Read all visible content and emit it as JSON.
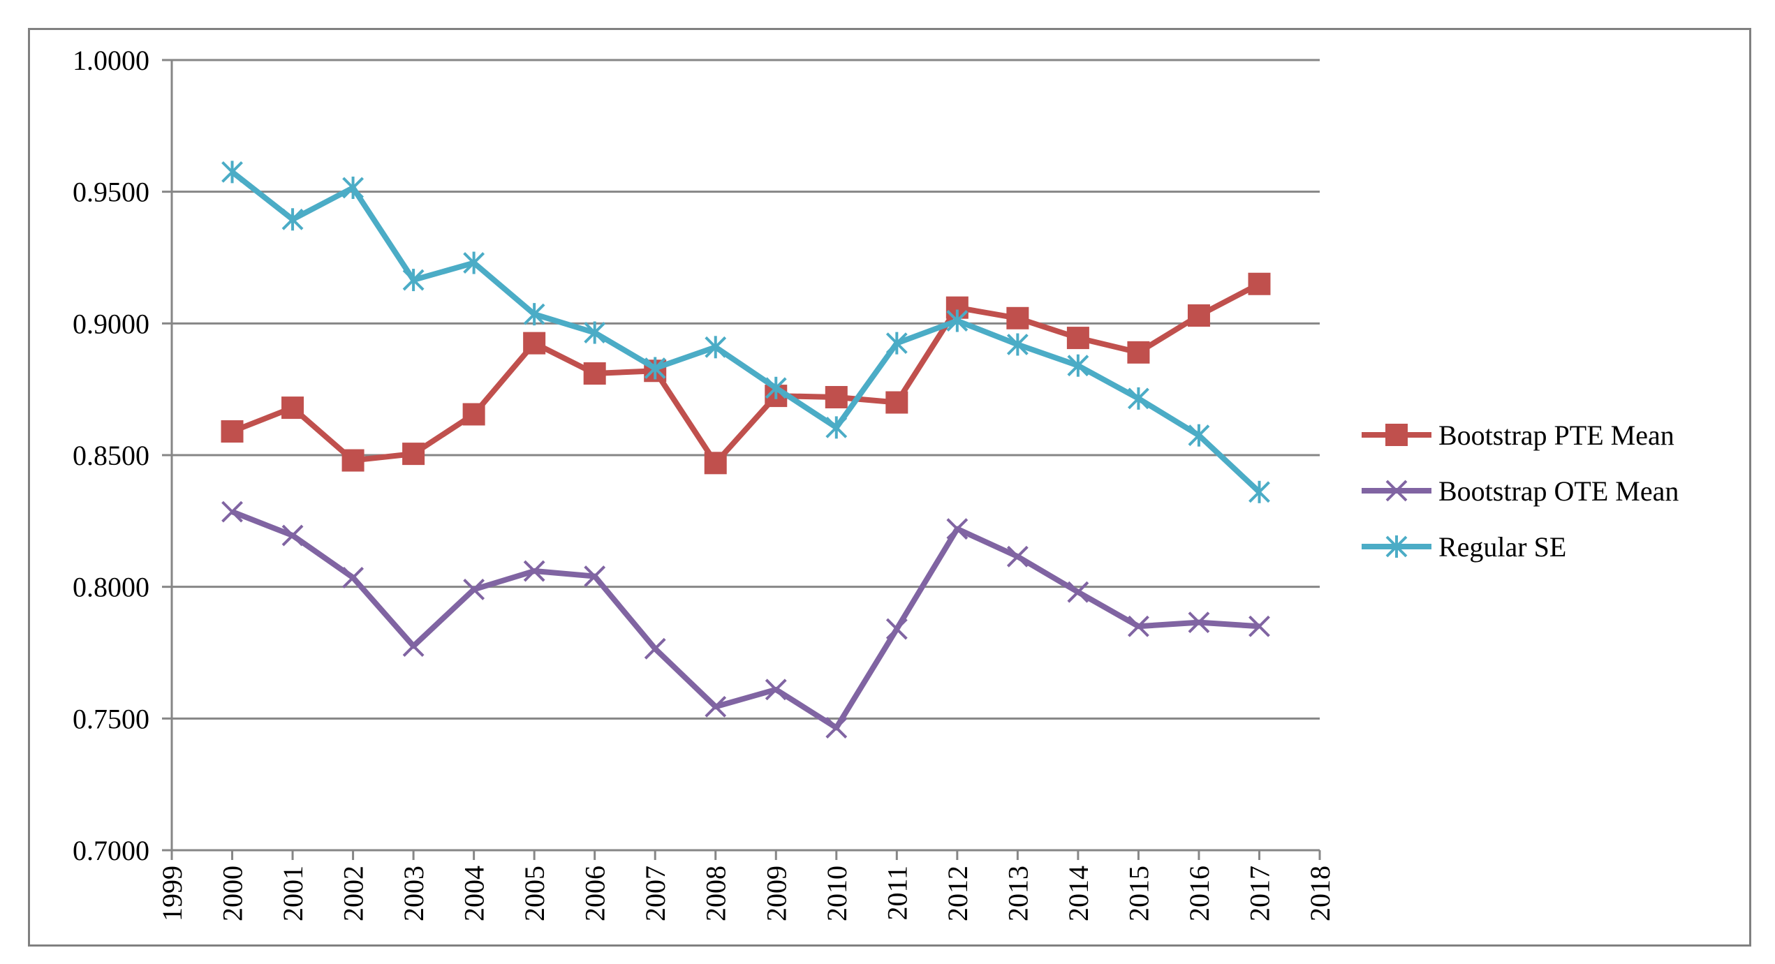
{
  "chart_data": {
    "type": "line",
    "title": "",
    "xlabel": "",
    "ylabel": "",
    "xlim": [
      1999,
      2018
    ],
    "ylim": [
      0.7,
      1.0
    ],
    "x_ticks": [
      "1999",
      "2000",
      "2001",
      "2002",
      "2003",
      "2004",
      "2005",
      "2006",
      "2007",
      "2008",
      "2009",
      "2010",
      "2011",
      "2012",
      "2013",
      "2014",
      "2015",
      "2016",
      "2017",
      "2018"
    ],
    "y_ticks": [
      "0.7000",
      "0.7500",
      "0.8000",
      "0.8500",
      "0.9000",
      "0.9500",
      "1.0000"
    ],
    "y_tick_values": [
      0.7,
      0.75,
      0.8,
      0.85,
      0.9,
      0.95,
      1.0
    ],
    "grid": true,
    "legend_position": "right",
    "x": [
      2000,
      2001,
      2002,
      2003,
      2004,
      2005,
      2006,
      2007,
      2008,
      2009,
      2010,
      2011,
      2012,
      2013,
      2014,
      2015,
      2016,
      2017
    ],
    "series": [
      {
        "name": "Bootstrap PTE Mean",
        "color": "#C0504D",
        "marker": "square",
        "values": [
          0.859,
          0.868,
          0.848,
          0.8505,
          0.8655,
          0.8925,
          0.881,
          0.882,
          0.847,
          0.8725,
          0.872,
          0.87,
          0.906,
          0.902,
          0.8945,
          0.889,
          0.903,
          0.915
        ]
      },
      {
        "name": "Bootstrap OTE Mean",
        "color": "#8064A2",
        "marker": "x",
        "values": [
          0.8285,
          0.8195,
          0.8035,
          0.7775,
          0.799,
          0.806,
          0.804,
          0.7765,
          0.7545,
          0.761,
          0.7465,
          0.784,
          0.822,
          0.8115,
          0.798,
          0.785,
          0.7865,
          0.785
        ]
      },
      {
        "name": "Regular SE",
        "color": "#4BACC6",
        "marker": "asterisk",
        "values": [
          0.9575,
          0.9395,
          0.9515,
          0.9165,
          0.923,
          0.9035,
          0.8965,
          0.883,
          0.891,
          0.8755,
          0.8605,
          0.8925,
          0.901,
          0.892,
          0.884,
          0.8715,
          0.8575,
          0.836
        ]
      }
    ]
  }
}
